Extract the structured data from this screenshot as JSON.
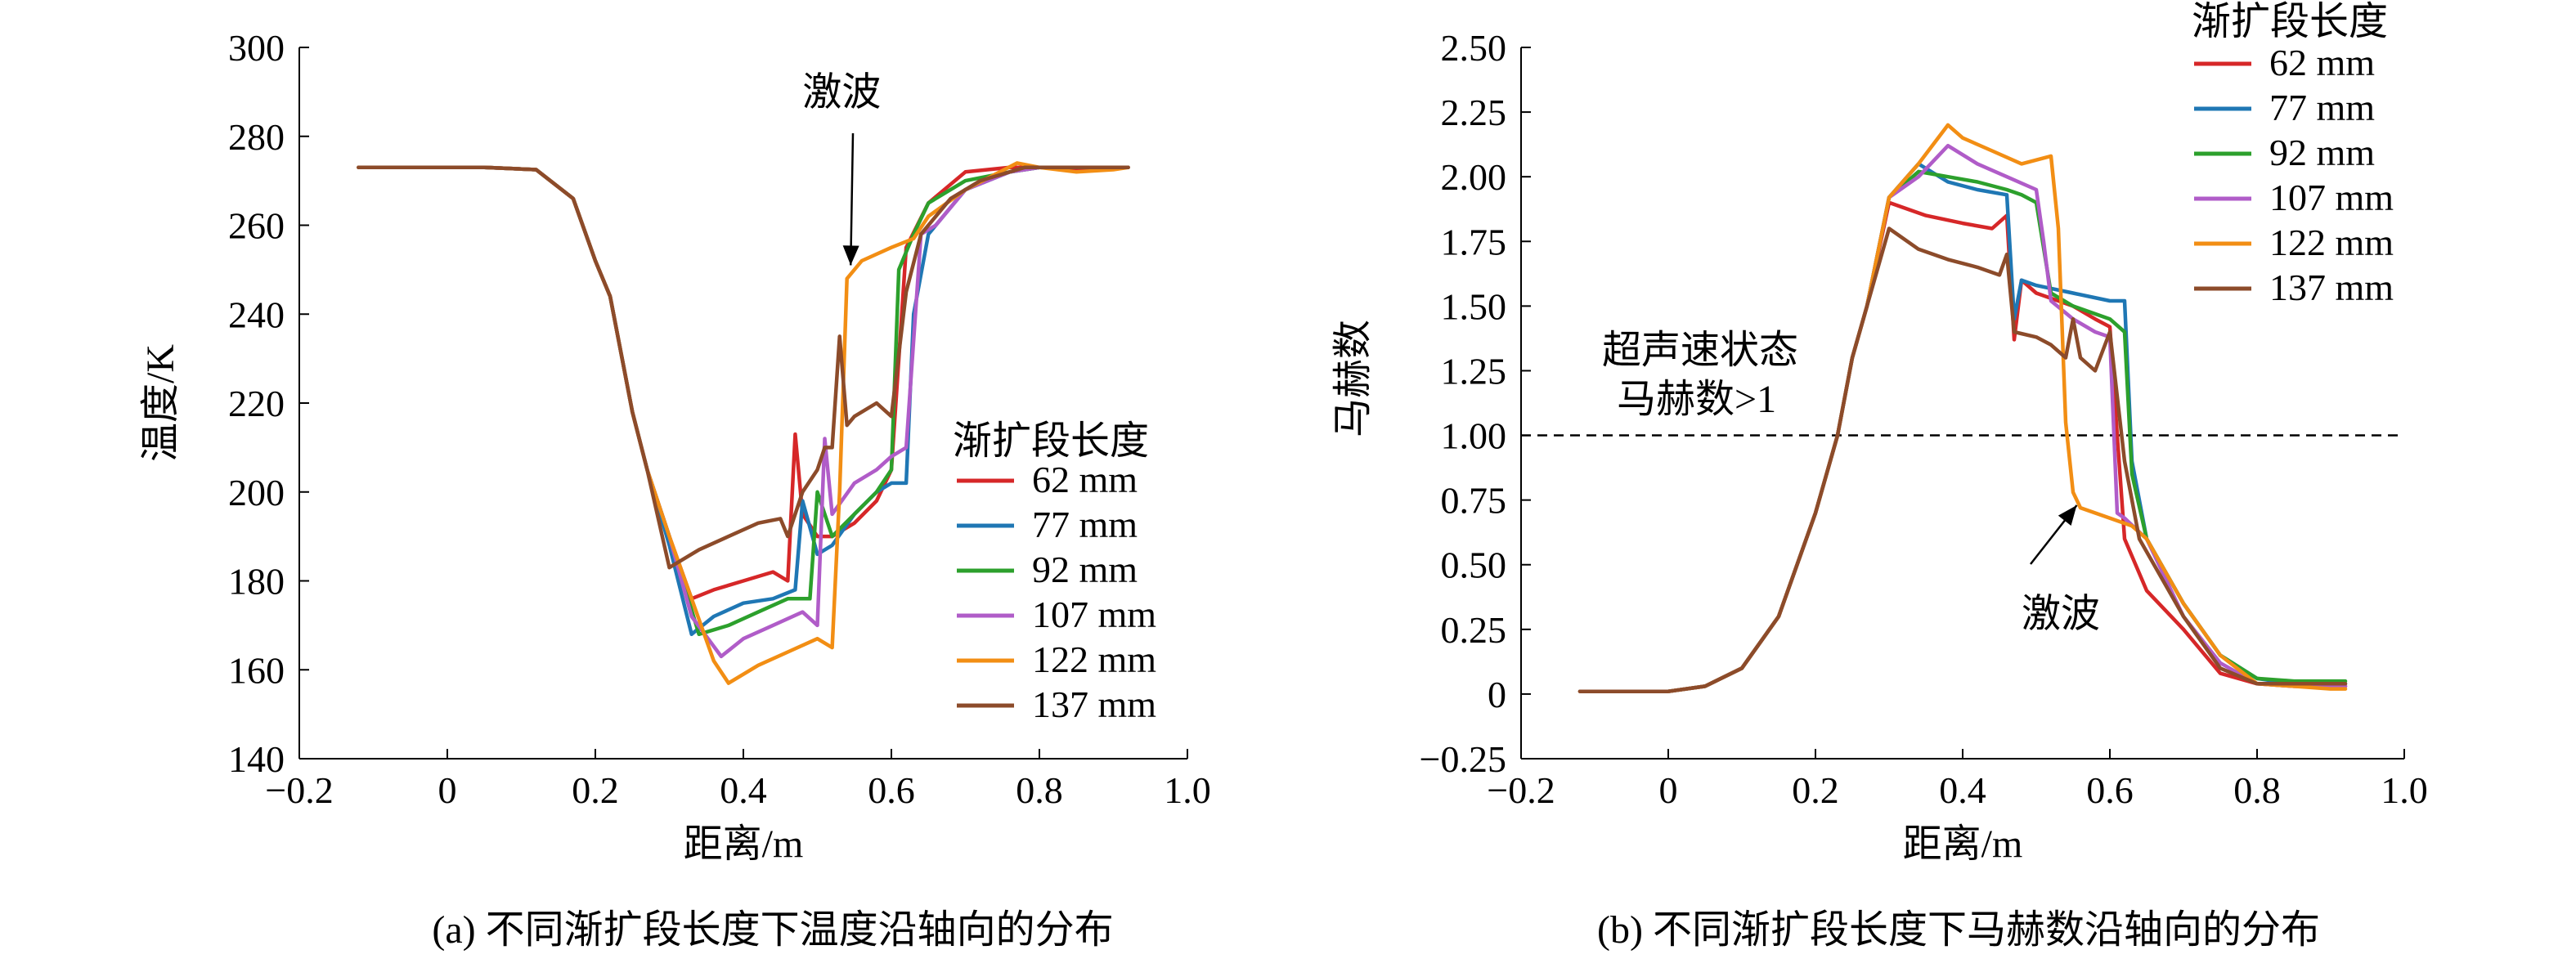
{
  "figure": {
    "captions": [
      "(a) 不同渐扩段长度下温度沿轴向的分布",
      "(b) 不同渐扩段长度下马赫数沿轴向的分布"
    ]
  },
  "colors": {
    "62 mm": "#d62728",
    "77 mm": "#1f77b4",
    "92 mm": "#2ca02c",
    "107 mm": "#b05cc8",
    "122 mm": "#f28e14",
    "137 mm": "#8c4b2a"
  },
  "chart_data": [
    {
      "type": "line",
      "xlabel": "距离/m",
      "ylabel": "温度/K",
      "xlim": [
        -0.2,
        1.0
      ],
      "ylim": [
        140,
        300
      ],
      "xticks": [
        -0.2,
        0,
        0.2,
        0.4,
        0.6,
        0.8,
        1.0
      ],
      "xtick_labels": [
        "−0.2",
        "0",
        "0.2",
        "0.4",
        "0.6",
        "0.8",
        "1.0"
      ],
      "yticks": [
        140,
        160,
        180,
        200,
        220,
        240,
        260,
        280,
        300
      ],
      "ytick_labels": [
        "140",
        "160",
        "180",
        "200",
        "220",
        "240",
        "260",
        "280",
        "300"
      ],
      "legend_title": "渐扩段长度",
      "legend_position": "center-right",
      "grid": false,
      "annotations": [
        {
          "text": "激波",
          "x": 0.48,
          "y": 287,
          "arrow_to": [
            0.545,
            251
          ]
        }
      ],
      "series": [
        {
          "name": "62 mm",
          "x": [
            -0.12,
            0.05,
            0.12,
            0.17,
            0.2,
            0.22,
            0.25,
            0.27,
            0.3,
            0.33,
            0.36,
            0.4,
            0.44,
            0.46,
            0.47,
            0.48,
            0.5,
            0.52,
            0.55,
            0.58,
            0.6,
            0.61,
            0.62,
            0.65,
            0.7,
            0.76,
            0.8,
            0.85,
            0.9,
            0.92
          ],
          "y": [
            273,
            273,
            272.5,
            266,
            252,
            244,
            218,
            205,
            190,
            176,
            178,
            180,
            182,
            180,
            213,
            195,
            190,
            190,
            193,
            198,
            205,
            230,
            255,
            265,
            272,
            273,
            273,
            272.5,
            273,
            273
          ]
        },
        {
          "name": "77 mm",
          "x": [
            -0.12,
            0.05,
            0.12,
            0.17,
            0.2,
            0.22,
            0.25,
            0.27,
            0.3,
            0.33,
            0.36,
            0.4,
            0.44,
            0.47,
            0.48,
            0.5,
            0.52,
            0.55,
            0.58,
            0.6,
            0.62,
            0.63,
            0.65,
            0.7,
            0.76,
            0.8,
            0.85,
            0.9,
            0.92
          ],
          "y": [
            273,
            273,
            272.5,
            266,
            252,
            244,
            218,
            205,
            188,
            168,
            172,
            175,
            176,
            178,
            198,
            186,
            188,
            195,
            200,
            202,
            202,
            240,
            258,
            268,
            272,
            273,
            273,
            273,
            273
          ]
        },
        {
          "name": "92 mm",
          "x": [
            -0.12,
            0.05,
            0.12,
            0.17,
            0.2,
            0.22,
            0.25,
            0.27,
            0.3,
            0.34,
            0.38,
            0.42,
            0.46,
            0.49,
            0.5,
            0.52,
            0.55,
            0.58,
            0.6,
            0.61,
            0.63,
            0.65,
            0.7,
            0.76,
            0.8,
            0.85,
            0.9,
            0.92
          ],
          "y": [
            273,
            273,
            272.5,
            266,
            252,
            244,
            218,
            205,
            190,
            168,
            170,
            173,
            176,
            176,
            200,
            190,
            195,
            200,
            205,
            250,
            258,
            265,
            270,
            272,
            273,
            273,
            273,
            273
          ]
        },
        {
          "name": "107 mm",
          "x": [
            -0.12,
            0.05,
            0.12,
            0.17,
            0.2,
            0.22,
            0.25,
            0.27,
            0.3,
            0.33,
            0.37,
            0.4,
            0.44,
            0.48,
            0.5,
            0.51,
            0.52,
            0.55,
            0.58,
            0.6,
            0.62,
            0.64,
            0.66,
            0.7,
            0.76,
            0.8,
            0.85,
            0.9,
            0.92
          ],
          "y": [
            273,
            273,
            272.5,
            266,
            252,
            244,
            218,
            205,
            190,
            172,
            163,
            167,
            170,
            173,
            170,
            212,
            195,
            202,
            205,
            208,
            210,
            258,
            260,
            268,
            272,
            273,
            273,
            273,
            273
          ]
        },
        {
          "name": "122 mm",
          "x": [
            -0.12,
            0.05,
            0.12,
            0.17,
            0.2,
            0.22,
            0.25,
            0.27,
            0.3,
            0.33,
            0.36,
            0.38,
            0.42,
            0.46,
            0.5,
            0.52,
            0.53,
            0.54,
            0.56,
            0.6,
            0.63,
            0.65,
            0.7,
            0.77,
            0.8,
            0.85,
            0.9,
            0.92
          ],
          "y": [
            273,
            273,
            272.5,
            266,
            252,
            244,
            218,
            205,
            190,
            176,
            162,
            157,
            161,
            164,
            167,
            165,
            200,
            248,
            252,
            255,
            257,
            262,
            268,
            274,
            273,
            272,
            272.5,
            273
          ]
        },
        {
          "name": "137 mm",
          "x": [
            -0.12,
            0.05,
            0.12,
            0.17,
            0.2,
            0.22,
            0.25,
            0.27,
            0.3,
            0.34,
            0.38,
            0.42,
            0.45,
            0.46,
            0.48,
            0.5,
            0.51,
            0.52,
            0.53,
            0.54,
            0.55,
            0.58,
            0.6,
            0.62,
            0.64,
            0.68,
            0.72,
            0.78,
            0.85,
            0.9,
            0.92
          ],
          "y": [
            273,
            273,
            272.5,
            266,
            252,
            244,
            218,
            205,
            183,
            187,
            190,
            193,
            194,
            190,
            200,
            205,
            210,
            210,
            235,
            215,
            217,
            220,
            217,
            245,
            258,
            266,
            270,
            273,
            273,
            273,
            273
          ]
        }
      ]
    },
    {
      "type": "line",
      "xlabel": "距离/m",
      "ylabel": "马赫数",
      "xlim": [
        -0.2,
        1.0
      ],
      "ylim": [
        -0.25,
        2.5
      ],
      "xticks": [
        -0.2,
        0,
        0.2,
        0.4,
        0.6,
        0.8,
        1.0
      ],
      "xtick_labels": [
        "−0.2",
        "0",
        "0.2",
        "0.4",
        "0.6",
        "0.8",
        "1.0"
      ],
      "yticks": [
        -0.25,
        0,
        0.25,
        0.5,
        0.75,
        1.0,
        1.25,
        1.5,
        1.75,
        2.0,
        2.25,
        2.5
      ],
      "ytick_labels": [
        "−0.25",
        "0",
        "0.25",
        "0.50",
        "0.75",
        "1.00",
        "1.25",
        "1.50",
        "1.75",
        "2.00",
        "2.25",
        "2.50"
      ],
      "legend_title": "渐扩段长度",
      "legend_position": "top-right",
      "grid": false,
      "reference_line": {
        "y": 1.0,
        "style": "dashed"
      },
      "annotations": [
        {
          "text": "超声速状态",
          "x": -0.09,
          "y": 1.28
        },
        {
          "text": "马赫数>1",
          "x": -0.07,
          "y": 1.09
        },
        {
          "text": "激波",
          "x": 0.48,
          "y": 0.26,
          "arrow_to": [
            0.555,
            0.73
          ]
        }
      ],
      "series": [
        {
          "name": "62 mm",
          "x": [
            -0.12,
            0.0,
            0.05,
            0.1,
            0.15,
            0.2,
            0.23,
            0.25,
            0.27,
            0.3,
            0.35,
            0.4,
            0.44,
            0.46,
            0.47,
            0.48,
            0.5,
            0.55,
            0.58,
            0.6,
            0.61,
            0.62,
            0.65,
            0.7,
            0.75,
            0.8,
            0.85,
            0.9,
            0.92
          ],
          "y": [
            0.01,
            0.01,
            0.03,
            0.1,
            0.3,
            0.7,
            1.0,
            1.3,
            1.5,
            1.9,
            1.85,
            1.82,
            1.8,
            1.85,
            1.37,
            1.6,
            1.55,
            1.5,
            1.45,
            1.42,
            1.0,
            0.6,
            0.4,
            0.25,
            0.08,
            0.04,
            0.03,
            0.03,
            0.03
          ]
        },
        {
          "name": "77 mm",
          "x": [
            -0.12,
            0.0,
            0.05,
            0.1,
            0.15,
            0.2,
            0.23,
            0.25,
            0.27,
            0.3,
            0.34,
            0.38,
            0.42,
            0.46,
            0.47,
            0.48,
            0.5,
            0.55,
            0.6,
            0.62,
            0.63,
            0.65,
            0.7,
            0.75,
            0.8,
            0.85,
            0.9,
            0.92
          ],
          "y": [
            0.01,
            0.01,
            0.03,
            0.1,
            0.3,
            0.7,
            1.0,
            1.3,
            1.5,
            1.92,
            2.05,
            1.98,
            1.95,
            1.93,
            1.45,
            1.6,
            1.58,
            1.55,
            1.52,
            1.52,
            0.9,
            0.6,
            0.35,
            0.15,
            0.06,
            0.04,
            0.04,
            0.04
          ]
        },
        {
          "name": "92 mm",
          "x": [
            -0.12,
            0.0,
            0.05,
            0.1,
            0.15,
            0.2,
            0.23,
            0.25,
            0.27,
            0.3,
            0.34,
            0.38,
            0.42,
            0.46,
            0.48,
            0.5,
            0.52,
            0.55,
            0.6,
            0.62,
            0.63,
            0.65,
            0.7,
            0.75,
            0.8,
            0.85,
            0.9,
            0.92
          ],
          "y": [
            0.01,
            0.01,
            0.03,
            0.1,
            0.3,
            0.7,
            1.0,
            1.3,
            1.5,
            1.92,
            2.02,
            2.0,
            1.98,
            1.95,
            1.93,
            1.9,
            1.55,
            1.5,
            1.45,
            1.4,
            0.85,
            0.6,
            0.35,
            0.15,
            0.06,
            0.05,
            0.05,
            0.05
          ]
        },
        {
          "name": "107 mm",
          "x": [
            -0.12,
            0.0,
            0.05,
            0.1,
            0.15,
            0.2,
            0.23,
            0.25,
            0.27,
            0.3,
            0.34,
            0.38,
            0.42,
            0.46,
            0.5,
            0.51,
            0.52,
            0.55,
            0.58,
            0.6,
            0.61,
            0.62,
            0.65,
            0.7,
            0.75,
            0.8,
            0.85,
            0.9,
            0.92
          ],
          "y": [
            0.01,
            0.01,
            0.03,
            0.1,
            0.3,
            0.7,
            1.0,
            1.3,
            1.5,
            1.92,
            2.0,
            2.12,
            2.05,
            2.0,
            1.95,
            1.75,
            1.52,
            1.45,
            1.4,
            1.38,
            0.7,
            0.68,
            0.6,
            0.3,
            0.12,
            0.04,
            0.03,
            0.03,
            0.03
          ]
        },
        {
          "name": "122 mm",
          "x": [
            -0.12,
            0.0,
            0.05,
            0.1,
            0.15,
            0.2,
            0.23,
            0.25,
            0.27,
            0.3,
            0.34,
            0.38,
            0.4,
            0.44,
            0.48,
            0.52,
            0.53,
            0.54,
            0.55,
            0.56,
            0.6,
            0.63,
            0.65,
            0.7,
            0.75,
            0.8,
            0.85,
            0.9,
            0.92
          ],
          "y": [
            0.01,
            0.01,
            0.03,
            0.1,
            0.3,
            0.7,
            1.0,
            1.3,
            1.5,
            1.92,
            2.05,
            2.2,
            2.15,
            2.1,
            2.05,
            2.08,
            1.8,
            1.05,
            0.78,
            0.72,
            0.68,
            0.65,
            0.6,
            0.35,
            0.15,
            0.04,
            0.03,
            0.02,
            0.02
          ]
        },
        {
          "name": "137 mm",
          "x": [
            -0.12,
            0.0,
            0.05,
            0.1,
            0.15,
            0.2,
            0.23,
            0.25,
            0.27,
            0.3,
            0.34,
            0.38,
            0.42,
            0.45,
            0.46,
            0.47,
            0.5,
            0.52,
            0.54,
            0.55,
            0.56,
            0.58,
            0.6,
            0.62,
            0.64,
            0.66,
            0.7,
            0.75,
            0.8,
            0.85,
            0.9,
            0.92
          ],
          "y": [
            0.01,
            0.01,
            0.03,
            0.1,
            0.3,
            0.7,
            1.0,
            1.3,
            1.5,
            1.8,
            1.72,
            1.68,
            1.65,
            1.62,
            1.7,
            1.4,
            1.38,
            1.35,
            1.3,
            1.45,
            1.3,
            1.25,
            1.4,
            0.9,
            0.6,
            0.5,
            0.3,
            0.1,
            0.04,
            0.04,
            0.04,
            0.04
          ]
        }
      ]
    }
  ]
}
